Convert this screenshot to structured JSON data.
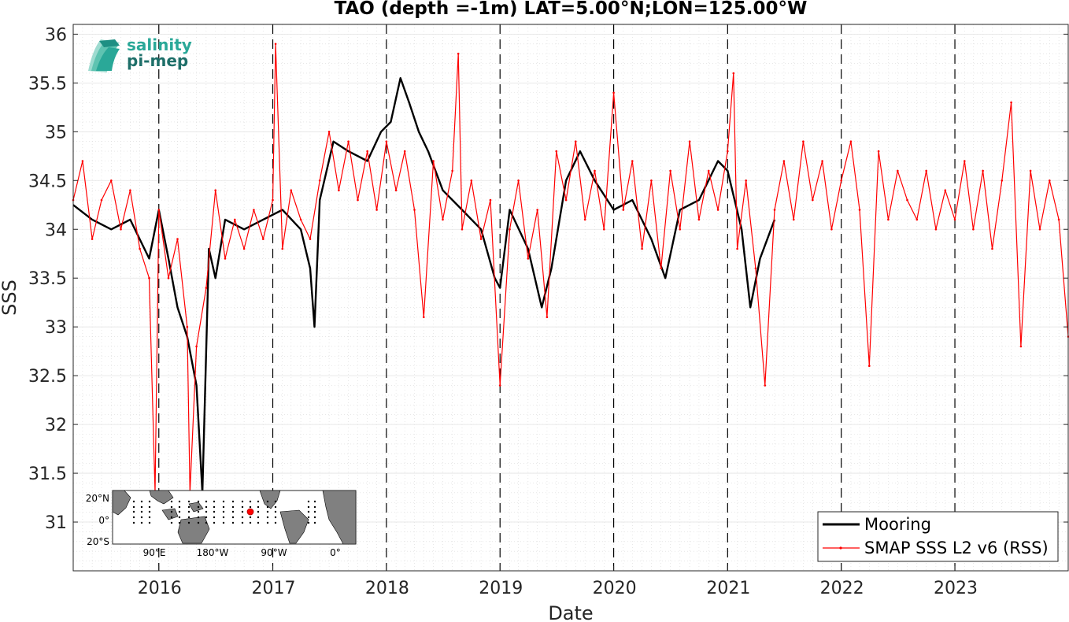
{
  "chart_data": {
    "type": "line",
    "title": "TAO (depth =-1m) LAT=5.00°N;LON=125.00°W",
    "xlabel": "Date",
    "ylabel": "SSS",
    "x_range": [
      "2015-04-01",
      "2023-12-31"
    ],
    "ylim": [
      30.5,
      36.1
    ],
    "x_ticks": [
      "2016",
      "2017",
      "2018",
      "2019",
      "2020",
      "2021",
      "2022",
      "2023"
    ],
    "y_ticks": [
      "31",
      "31.5",
      "32",
      "32.5",
      "33",
      "33.5",
      "34",
      "34.5",
      "35",
      "35.5",
      "36"
    ],
    "year_boundaries": [
      "2016-01-01",
      "2017-01-01",
      "2018-01-01",
      "2019-01-01",
      "2020-01-01",
      "2021-01-01",
      "2022-01-01",
      "2023-01-01"
    ],
    "grid": true,
    "legend_position": "bottom-right",
    "series": [
      {
        "name": "Mooring",
        "color": "#000000",
        "points": [
          [
            "2015-04-01",
            34.25
          ],
          [
            "2015-06-01",
            34.1
          ],
          [
            "2015-08-01",
            34.0
          ],
          [
            "2015-10-01",
            34.1
          ],
          [
            "2015-12-01",
            33.7
          ],
          [
            "2016-01-01",
            34.2
          ],
          [
            "2016-02-01",
            33.7
          ],
          [
            "2016-03-01",
            33.2
          ],
          [
            "2016-04-01",
            32.9
          ],
          [
            "2016-05-01",
            32.4
          ],
          [
            "2016-05-20",
            31.3
          ],
          [
            "2016-06-10",
            33.8
          ],
          [
            "2016-07-01",
            33.5
          ],
          [
            "2016-08-01",
            34.1
          ],
          [
            "2016-10-01",
            34.0
          ],
          [
            "2016-12-01",
            34.1
          ],
          [
            "2017-02-01",
            34.2
          ],
          [
            "2017-04-01",
            34.0
          ],
          [
            "2017-05-01",
            33.6
          ],
          [
            "2017-05-15",
            33.0
          ],
          [
            "2017-06-01",
            34.3
          ],
          [
            "2017-07-15",
            34.9
          ],
          [
            "2017-09-01",
            34.8
          ],
          [
            "2017-11-01",
            34.7
          ],
          [
            "2017-12-15",
            35.0
          ],
          [
            "2018-01-15",
            35.1
          ],
          [
            "2018-02-15",
            35.55
          ],
          [
            "2018-03-15",
            35.3
          ],
          [
            "2018-04-15",
            35.0
          ],
          [
            "2018-05-15",
            34.8
          ],
          [
            "2018-07-01",
            34.4
          ],
          [
            "2018-09-01",
            34.2
          ],
          [
            "2018-11-01",
            34.0
          ],
          [
            "2018-12-15",
            33.5
          ],
          [
            "2019-01-01",
            33.4
          ],
          [
            "2019-02-01",
            34.2
          ],
          [
            "2019-04-01",
            33.8
          ],
          [
            "2019-05-15",
            33.2
          ],
          [
            "2019-06-15",
            33.6
          ],
          [
            "2019-08-01",
            34.5
          ],
          [
            "2019-09-15",
            34.8
          ],
          [
            "2019-11-01",
            34.5
          ],
          [
            "2020-01-01",
            34.2
          ],
          [
            "2020-03-01",
            34.3
          ],
          [
            "2020-05-01",
            33.9
          ],
          [
            "2020-06-15",
            33.5
          ],
          [
            "2020-08-01",
            34.2
          ],
          [
            "2020-10-01",
            34.3
          ],
          [
            "2020-12-01",
            34.7
          ],
          [
            "2021-01-01",
            34.6
          ],
          [
            "2021-02-15",
            34.0
          ],
          [
            "2021-03-15",
            33.2
          ],
          [
            "2021-04-15",
            33.7
          ],
          [
            "2021-06-01",
            34.1
          ]
        ]
      },
      {
        "name": "SMAP SSS L2 v6 (RSS)",
        "color": "#ff0000",
        "points": [
          [
            "2015-04-01",
            34.3
          ],
          [
            "2015-05-01",
            34.7
          ],
          [
            "2015-06-01",
            33.9
          ],
          [
            "2015-07-01",
            34.3
          ],
          [
            "2015-08-01",
            34.5
          ],
          [
            "2015-09-01",
            34.0
          ],
          [
            "2015-10-01",
            34.4
          ],
          [
            "2015-11-01",
            33.8
          ],
          [
            "2015-12-01",
            33.5
          ],
          [
            "2015-12-20",
            31.3
          ],
          [
            "2016-01-01",
            34.2
          ],
          [
            "2016-02-01",
            33.5
          ],
          [
            "2016-03-01",
            33.9
          ],
          [
            "2016-04-01",
            33.0
          ],
          [
            "2016-04-10",
            31.3
          ],
          [
            "2016-05-01",
            32.8
          ],
          [
            "2016-06-01",
            33.4
          ],
          [
            "2016-07-01",
            34.4
          ],
          [
            "2016-08-01",
            33.7
          ],
          [
            "2016-09-01",
            34.1
          ],
          [
            "2016-10-01",
            33.8
          ],
          [
            "2016-11-01",
            34.2
          ],
          [
            "2016-12-01",
            33.9
          ],
          [
            "2017-01-01",
            34.3
          ],
          [
            "2017-01-10",
            35.9
          ],
          [
            "2017-02-01",
            33.8
          ],
          [
            "2017-03-01",
            34.4
          ],
          [
            "2017-04-01",
            34.1
          ],
          [
            "2017-05-01",
            33.9
          ],
          [
            "2017-06-01",
            34.5
          ],
          [
            "2017-07-01",
            35.0
          ],
          [
            "2017-08-01",
            34.4
          ],
          [
            "2017-09-01",
            34.9
          ],
          [
            "2017-10-01",
            34.3
          ],
          [
            "2017-11-01",
            34.8
          ],
          [
            "2017-12-01",
            34.2
          ],
          [
            "2018-01-01",
            34.9
          ],
          [
            "2018-02-01",
            34.4
          ],
          [
            "2018-03-01",
            34.8
          ],
          [
            "2018-04-01",
            34.2
          ],
          [
            "2018-05-01",
            33.1
          ],
          [
            "2018-06-01",
            34.7
          ],
          [
            "2018-07-01",
            34.1
          ],
          [
            "2018-08-01",
            34.6
          ],
          [
            "2018-08-20",
            35.8
          ],
          [
            "2018-09-01",
            34.0
          ],
          [
            "2018-10-01",
            34.5
          ],
          [
            "2018-11-01",
            33.9
          ],
          [
            "2018-12-01",
            34.3
          ],
          [
            "2019-01-01",
            32.4
          ],
          [
            "2019-02-01",
            34.0
          ],
          [
            "2019-03-01",
            34.5
          ],
          [
            "2019-04-01",
            33.7
          ],
          [
            "2019-05-01",
            34.2
          ],
          [
            "2019-06-01",
            33.1
          ],
          [
            "2019-07-01",
            34.8
          ],
          [
            "2019-08-01",
            34.3
          ],
          [
            "2019-09-01",
            34.9
          ],
          [
            "2019-10-01",
            34.1
          ],
          [
            "2019-11-01",
            34.6
          ],
          [
            "2019-12-01",
            34.0
          ],
          [
            "2020-01-01",
            35.4
          ],
          [
            "2020-02-01",
            34.2
          ],
          [
            "2020-03-01",
            34.7
          ],
          [
            "2020-04-01",
            33.8
          ],
          [
            "2020-05-01",
            34.5
          ],
          [
            "2020-06-01",
            33.6
          ],
          [
            "2020-07-01",
            34.6
          ],
          [
            "2020-08-01",
            34.0
          ],
          [
            "2020-09-01",
            34.9
          ],
          [
            "2020-10-01",
            34.1
          ],
          [
            "2020-11-01",
            34.6
          ],
          [
            "2020-12-01",
            34.2
          ],
          [
            "2021-01-01",
            34.8
          ],
          [
            "2021-01-20",
            35.6
          ],
          [
            "2021-02-01",
            33.8
          ],
          [
            "2021-03-01",
            34.5
          ],
          [
            "2021-04-01",
            33.6
          ],
          [
            "2021-05-01",
            32.4
          ],
          [
            "2021-06-01",
            34.2
          ],
          [
            "2021-07-01",
            34.7
          ],
          [
            "2021-08-01",
            34.1
          ],
          [
            "2021-09-01",
            34.9
          ],
          [
            "2021-10-01",
            34.3
          ],
          [
            "2021-11-01",
            34.7
          ],
          [
            "2021-12-01",
            34.0
          ],
          [
            "2022-01-01",
            34.5
          ],
          [
            "2022-02-01",
            34.9
          ],
          [
            "2022-03-01",
            34.2
          ],
          [
            "2022-04-01",
            32.6
          ],
          [
            "2022-05-01",
            34.8
          ],
          [
            "2022-06-01",
            34.1
          ],
          [
            "2022-07-01",
            34.6
          ],
          [
            "2022-08-01",
            34.3
          ],
          [
            "2022-09-01",
            34.1
          ],
          [
            "2022-10-01",
            34.6
          ],
          [
            "2022-11-01",
            34.0
          ],
          [
            "2022-12-01",
            34.4
          ],
          [
            "2023-01-01",
            34.1
          ],
          [
            "2023-02-01",
            34.7
          ],
          [
            "2023-03-01",
            34.0
          ],
          [
            "2023-04-01",
            34.6
          ],
          [
            "2023-05-01",
            33.8
          ],
          [
            "2023-06-01",
            34.5
          ],
          [
            "2023-07-01",
            35.3
          ],
          [
            "2023-08-01",
            32.8
          ],
          [
            "2023-09-01",
            34.6
          ],
          [
            "2023-10-01",
            34.0
          ],
          [
            "2023-11-01",
            34.5
          ],
          [
            "2023-12-01",
            34.1
          ],
          [
            "2023-12-31",
            32.9
          ]
        ]
      }
    ]
  },
  "inset_map": {
    "lat_labels": [
      "20°N",
      "0°",
      "20°S"
    ],
    "lon_labels": [
      "90°E",
      "180°W",
      "90°W",
      "0°"
    ],
    "marker_color": "#ff0000"
  },
  "logo": {
    "line1": "salinity",
    "line2": "pi-mep",
    "color1": "#2aa898",
    "color2": "#1e6f69"
  }
}
